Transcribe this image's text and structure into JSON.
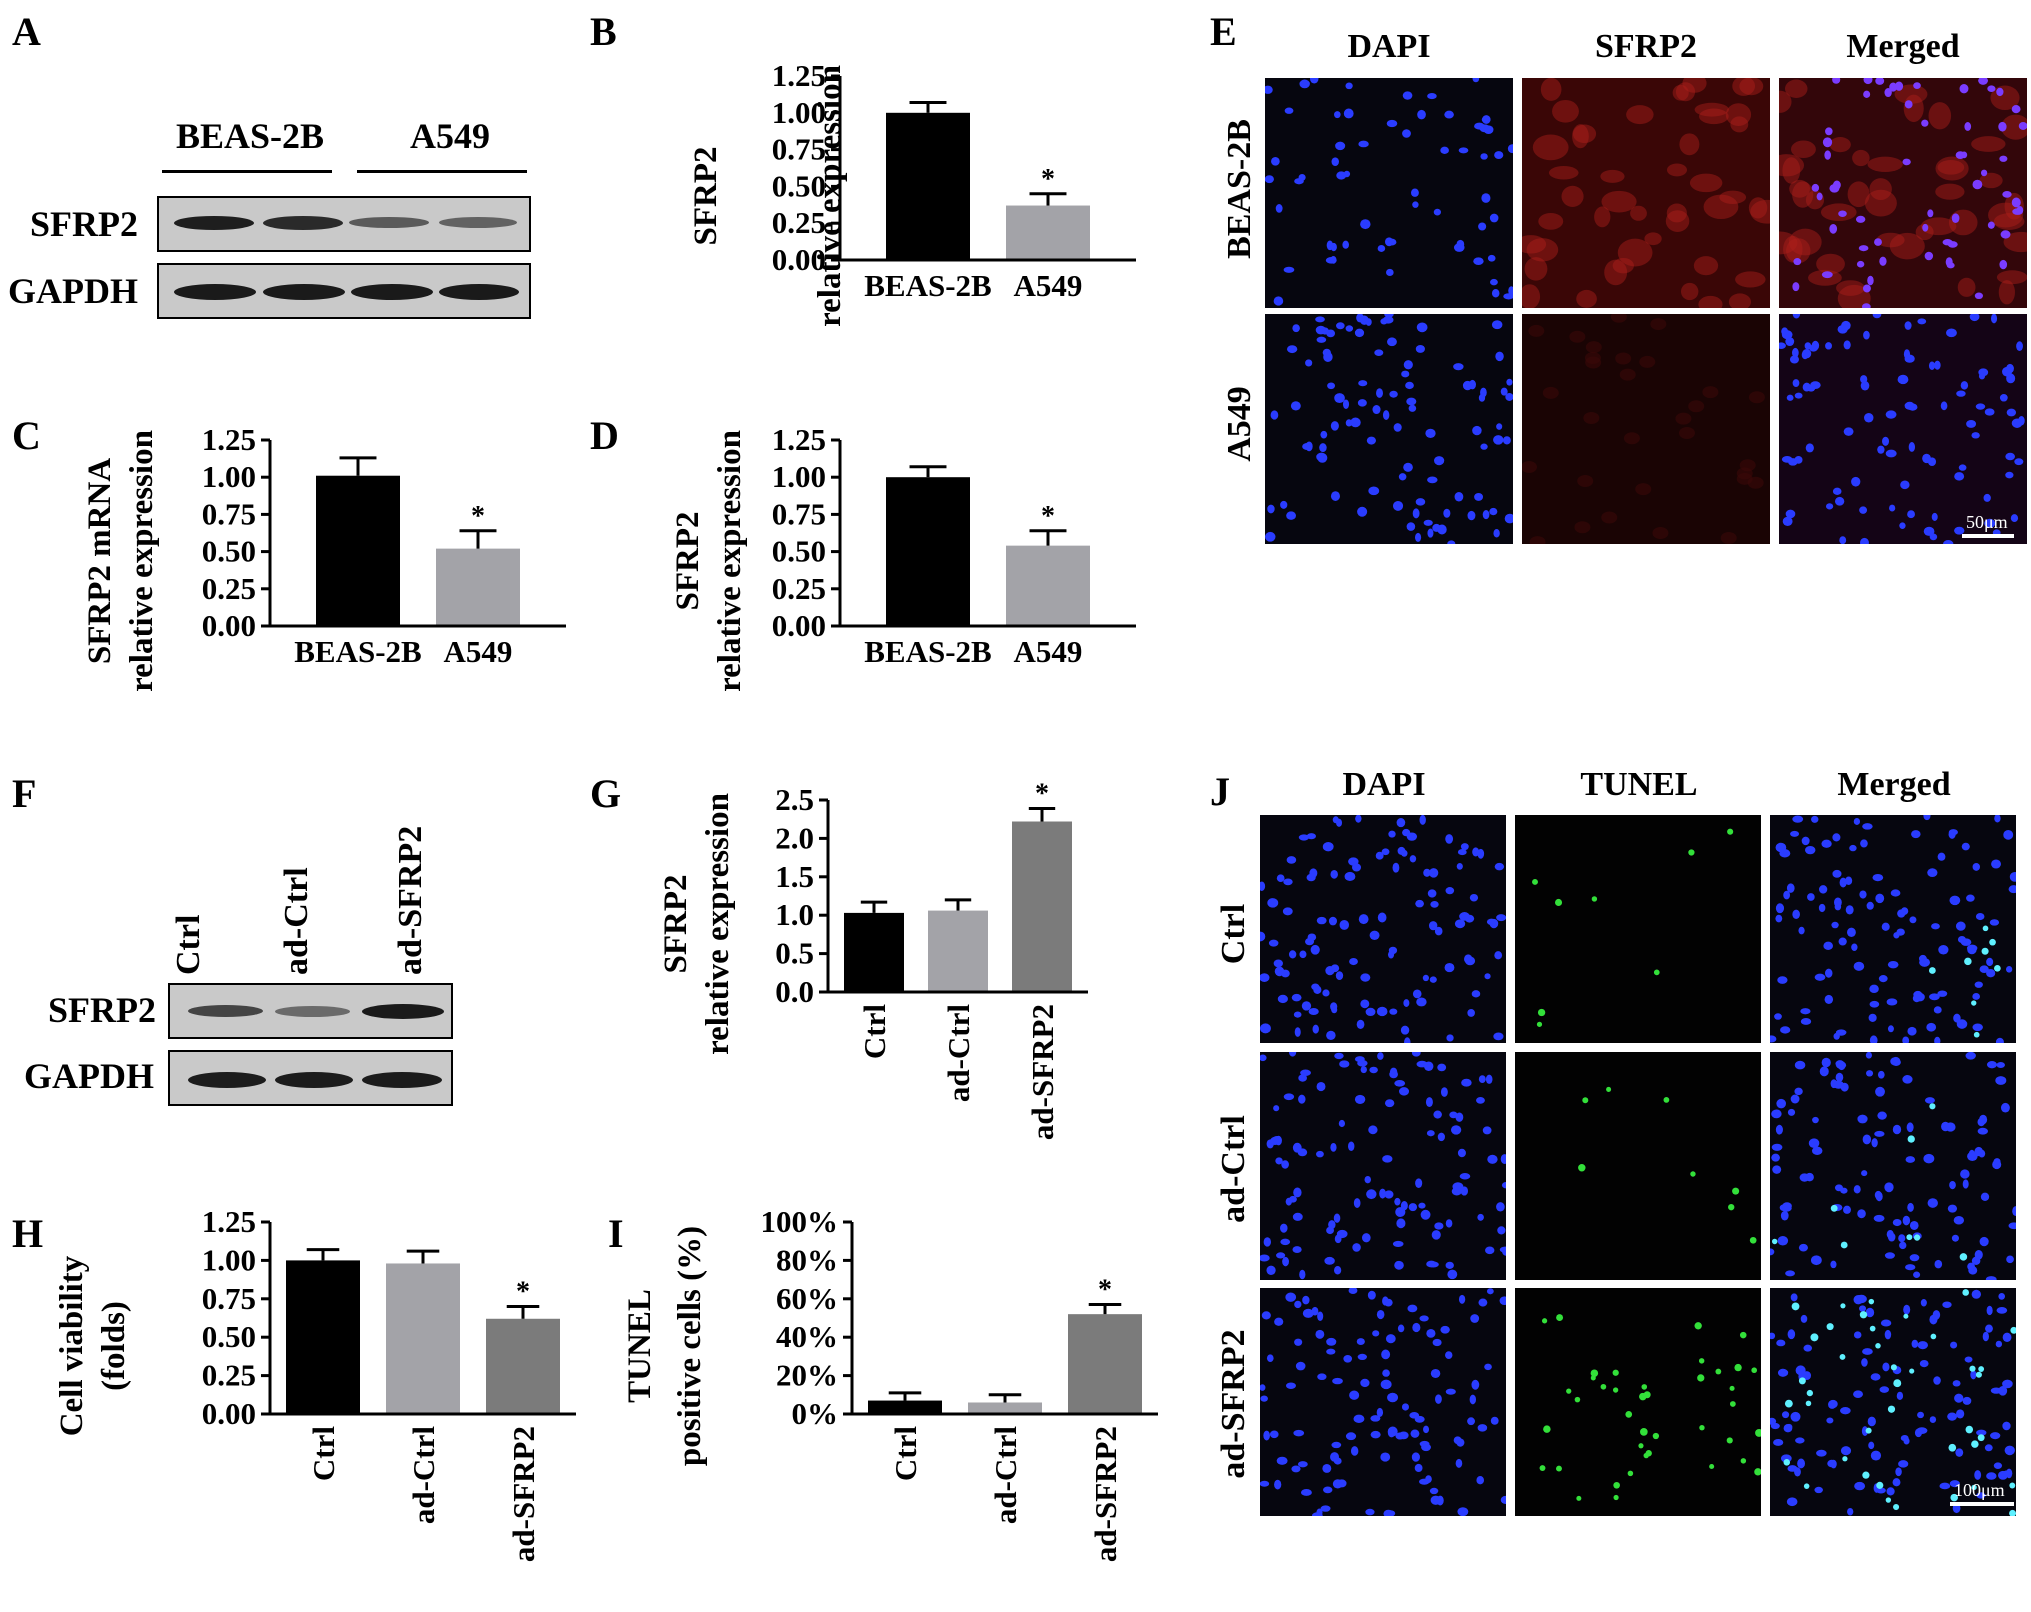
{
  "panels": {
    "A": {
      "letter": "A",
      "groups": [
        "BEAS-2B",
        "A549"
      ],
      "rows": [
        "SFRP2",
        "GAPDH"
      ]
    },
    "E": {
      "letter": "E",
      "columns": [
        "DAPI",
        "SFRP2",
        "Merged"
      ],
      "rows": [
        "BEAS-2B",
        "A549"
      ],
      "scale": "50μm"
    },
    "F": {
      "letter": "F",
      "lanes": [
        "Ctrl",
        "ad-Ctrl",
        "ad-SFRP2"
      ],
      "rows": [
        "SFRP2",
        "GAPDH"
      ]
    },
    "J": {
      "letter": "J",
      "columns": [
        "DAPI",
        "TUNEL",
        "Merged"
      ],
      "rows": [
        "Ctrl",
        "ad-Ctrl",
        "ad-SFRP2"
      ],
      "scale": "100μm"
    }
  },
  "colors": {
    "black": "#000000",
    "light_gray": "#a3a3a8",
    "dark_gray": "#7b7b7b",
    "dapi": "#2a3cff",
    "sfrp2": "#b0201a",
    "tunel": "#33e03a"
  },
  "chart_data": [
    {
      "id": "B",
      "letter": "B",
      "type": "bar",
      "categories": [
        "BEAS-2B",
        "A549"
      ],
      "values": [
        1.0,
        0.37
      ],
      "errors": [
        0.07,
        0.08
      ],
      "colors": [
        "#000000",
        "#a3a3a8"
      ],
      "significance": [
        "",
        "*"
      ],
      "ylabel": [
        "SFRP2",
        "relative expression"
      ],
      "ylim": [
        0,
        1.25
      ],
      "yticks": [
        "0.00",
        "0.25",
        "0.50",
        "0.75",
        "1.00",
        "1.25"
      ],
      "category_rotation": 0
    },
    {
      "id": "C",
      "letter": "C",
      "type": "bar",
      "categories": [
        "BEAS-2B",
        "A549"
      ],
      "values": [
        1.01,
        0.52
      ],
      "errors": [
        0.12,
        0.12
      ],
      "colors": [
        "#000000",
        "#a3a3a8"
      ],
      "significance": [
        "",
        "*"
      ],
      "ylabel": [
        "SFRP2 mRNA",
        "relative expression"
      ],
      "ylim": [
        0,
        1.25
      ],
      "yticks": [
        "0.00",
        "0.25",
        "0.50",
        "0.75",
        "1.00",
        "1.25"
      ],
      "category_rotation": 0
    },
    {
      "id": "D",
      "letter": "D",
      "type": "bar",
      "categories": [
        "BEAS-2B",
        "A549"
      ],
      "values": [
        1.0,
        0.54
      ],
      "errors": [
        0.07,
        0.1
      ],
      "colors": [
        "#000000",
        "#a3a3a8"
      ],
      "significance": [
        "",
        "*"
      ],
      "ylabel": [
        "SFRP2",
        "relative expression"
      ],
      "ylim": [
        0,
        1.25
      ],
      "yticks": [
        "0.00",
        "0.25",
        "0.50",
        "0.75",
        "1.00",
        "1.25"
      ],
      "category_rotation": 0
    },
    {
      "id": "G",
      "letter": "G",
      "type": "bar",
      "categories": [
        "Ctrl",
        "ad-Ctrl",
        "ad-SFRP2"
      ],
      "values": [
        1.03,
        1.06,
        2.22
      ],
      "errors": [
        0.14,
        0.14,
        0.17
      ],
      "colors": [
        "#000000",
        "#a3a3a8",
        "#7b7b7b"
      ],
      "significance": [
        "",
        "",
        "*"
      ],
      "ylabel": [
        "SFRP2",
        "relative expression"
      ],
      "ylim": [
        0,
        2.5
      ],
      "yticks": [
        "0.0",
        "0.5",
        "1.0",
        "1.5",
        "2.0",
        "2.5"
      ],
      "category_rotation": -90
    },
    {
      "id": "H",
      "letter": "H",
      "type": "bar",
      "categories": [
        "Ctrl",
        "ad-Ctrl",
        "ad-SFRP2"
      ],
      "values": [
        1.0,
        0.98,
        0.62
      ],
      "errors": [
        0.07,
        0.08,
        0.08
      ],
      "colors": [
        "#000000",
        "#a3a3a8",
        "#7b7b7b"
      ],
      "significance": [
        "",
        "",
        "*"
      ],
      "ylabel": [
        "Cell viability",
        "(folds)"
      ],
      "ylim": [
        0,
        1.25
      ],
      "yticks": [
        "0.00",
        "0.25",
        "0.50",
        "0.75",
        "1.00",
        "1.25"
      ],
      "category_rotation": -90
    },
    {
      "id": "I",
      "letter": "I",
      "type": "bar",
      "categories": [
        "Ctrl",
        "ad-Ctrl",
        "ad-SFRP2"
      ],
      "values": [
        7,
        6,
        52
      ],
      "errors": [
        4,
        4,
        5
      ],
      "colors": [
        "#000000",
        "#a3a3a8",
        "#7b7b7b"
      ],
      "significance": [
        "",
        "",
        "*"
      ],
      "ylabel": [
        "TUNEL",
        "positive cells (%)"
      ],
      "ylim": [
        0,
        100
      ],
      "yticks": [
        "0%",
        "20%",
        "40%",
        "60%",
        "80%",
        "100%"
      ],
      "category_rotation": -90
    }
  ]
}
